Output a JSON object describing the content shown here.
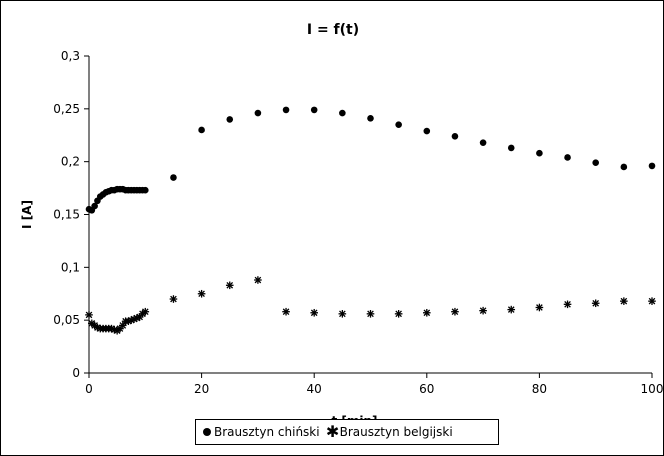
{
  "chart_data": {
    "type": "scatter",
    "title": "I = f(t)",
    "xlabel": "t [min]",
    "ylabel": "I [A]",
    "xlim": [
      0,
      100
    ],
    "ylim": [
      0,
      0.3
    ],
    "xticks": [
      "0",
      "20",
      "40",
      "60",
      "80",
      "100"
    ],
    "yticks": [
      "0",
      "0,05",
      "0,1",
      "0,15",
      "0,2",
      "0,25",
      "0,3"
    ],
    "grid": false,
    "legend_position": "bottom",
    "series": [
      {
        "name": "Brausztyn chiński",
        "marker": "circle",
        "x": [
          0,
          0.5,
          1,
          1.5,
          2,
          2.5,
          3,
          3.5,
          4,
          4.5,
          5,
          5.5,
          6,
          6.5,
          7,
          7.5,
          8,
          8.5,
          9,
          9.5,
          10,
          15,
          20,
          25,
          30,
          35,
          40,
          45,
          50,
          55,
          60,
          65,
          70,
          75,
          80,
          85,
          90,
          95,
          100
        ],
        "y": [
          0.155,
          0.154,
          0.158,
          0.163,
          0.167,
          0.169,
          0.171,
          0.172,
          0.173,
          0.173,
          0.174,
          0.174,
          0.174,
          0.173,
          0.173,
          0.173,
          0.173,
          0.173,
          0.173,
          0.173,
          0.173,
          0.185,
          0.23,
          0.24,
          0.246,
          0.249,
          0.249,
          0.246,
          0.241,
          0.235,
          0.229,
          0.224,
          0.218,
          0.213,
          0.208,
          0.204,
          0.199,
          0.195,
          0.196
        ]
      },
      {
        "name": "Brausztyn belgijski",
        "marker": "star",
        "x": [
          0,
          0.5,
          1,
          1.5,
          2,
          2.5,
          3,
          3.5,
          4,
          4.5,
          5,
          5.5,
          6,
          6.5,
          7,
          7.5,
          8,
          8.5,
          9,
          9.5,
          10,
          15,
          20,
          25,
          30,
          35,
          40,
          45,
          50,
          55,
          60,
          65,
          70,
          75,
          80,
          85,
          90,
          95,
          100
        ],
        "y": [
          0.055,
          0.047,
          0.045,
          0.043,
          0.042,
          0.042,
          0.042,
          0.042,
          0.042,
          0.041,
          0.04,
          0.042,
          0.045,
          0.049,
          0.049,
          0.05,
          0.051,
          0.052,
          0.053,
          0.056,
          0.058,
          0.07,
          0.075,
          0.083,
          0.088,
          0.058,
          0.057,
          0.056,
          0.056,
          0.056,
          0.057,
          0.058,
          0.059,
          0.06,
          0.062,
          0.065,
          0.066,
          0.068,
          0.068
        ]
      }
    ]
  }
}
